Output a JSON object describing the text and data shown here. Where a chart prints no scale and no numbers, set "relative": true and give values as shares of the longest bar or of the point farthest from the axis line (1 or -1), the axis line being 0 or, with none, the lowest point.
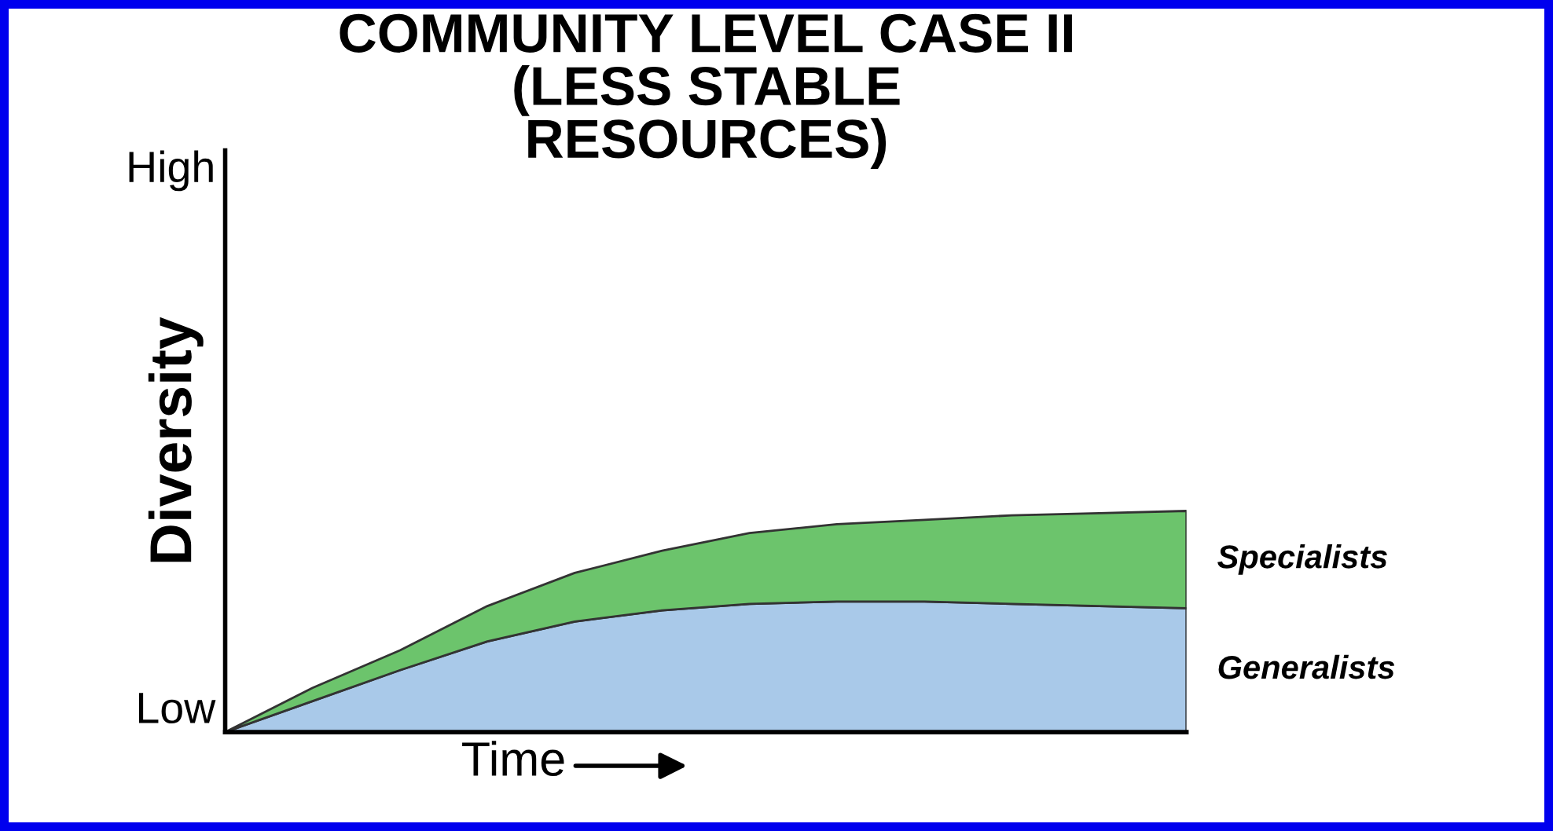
{
  "chart_data": {
    "type": "area",
    "stacked": true,
    "relative": true,
    "title": "COMMUNITY LEVEL CASE II\n(LESS STABLE\nRESOURCES)",
    "xlabel": "Time",
    "ylabel": "Diversity",
    "annotations": [
      "High",
      "Low"
    ],
    "categories": [
      null,
      null,
      null,
      null,
      null,
      null,
      null,
      null,
      null,
      null,
      null,
      null
    ],
    "series": [
      {
        "name": "Generalists",
        "color": "#a9c9e9",
        "values": [
          0,
          0.14,
          0.28,
          0.41,
          0.5,
          0.55,
          0.58,
          0.59,
          0.59,
          0.58,
          0.57,
          0.56
        ]
      },
      {
        "name": "Specialists",
        "color": "#6cc46c",
        "values": [
          0,
          0.06,
          0.09,
          0.16,
          0.22,
          0.27,
          0.32,
          0.35,
          0.37,
          0.4,
          0.42,
          0.44
        ]
      }
    ],
    "legend": false
  }
}
